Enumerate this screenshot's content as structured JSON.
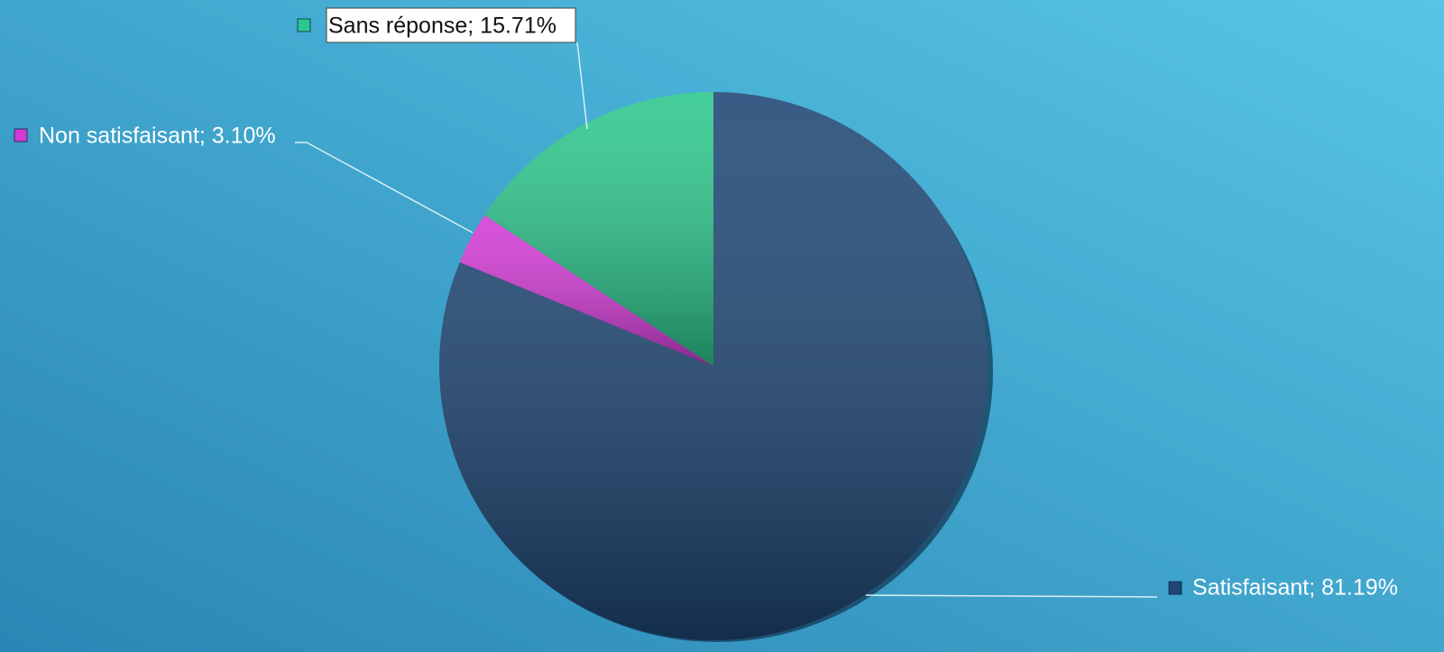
{
  "chart_data": {
    "type": "pie",
    "categories": [
      "Satisfaisant",
      "Non satisfaisant",
      "Sans réponse"
    ],
    "values": [
      81.19,
      3.1,
      15.71
    ],
    "value_labels": [
      "Satisfaisant; 81.19%",
      "Non satisfaisant; 3.10%",
      "Sans réponse; 15.71%"
    ],
    "colors": [
      "#1d4674",
      "#d33ad6",
      "#2bc78c"
    ]
  }
}
